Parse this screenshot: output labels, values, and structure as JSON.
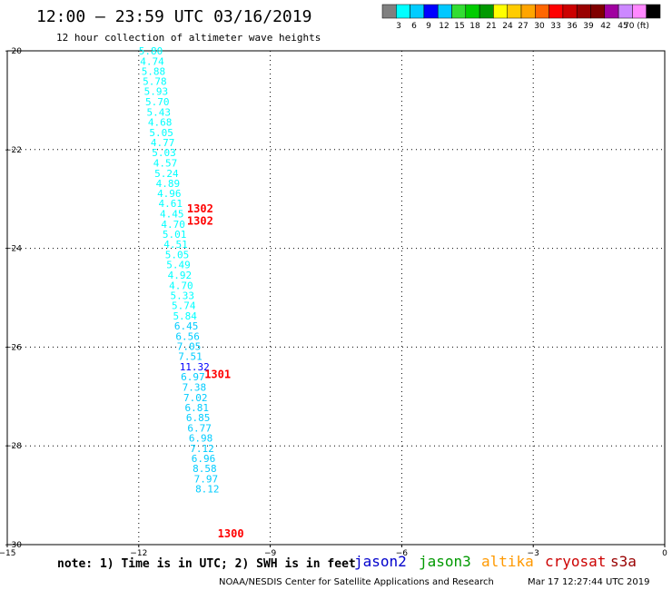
{
  "header": {
    "title": "12:00 — 23:59 UTC 03/16/2019",
    "subtitle": "12 hour collection of altimeter wave heights"
  },
  "color_scale": {
    "colors": [
      "#808080",
      "#00ffff",
      "#00ccff",
      "#0000ff",
      "#00c8ff",
      "#33dd33",
      "#00cc00",
      "#009900",
      "#ffff00",
      "#ffcc00",
      "#ffa500",
      "#ff6600",
      "#ff0000",
      "#cc0000",
      "#990000",
      "#800000",
      "#a000a0",
      "#cc88ff",
      "#ff88ff",
      "#000000"
    ],
    "labels": [
      "3",
      "6",
      "9",
      "12",
      "15",
      "18",
      "21",
      "24",
      "27",
      "30",
      "33",
      "36",
      "39",
      "42",
      "45",
      "70 (ft)"
    ]
  },
  "chart_data": {
    "type": "scatter",
    "title": "12:00 — 23:59 UTC 03/16/2019",
    "subtitle": "12 hour collection of altimeter wave heights",
    "xlim": [
      -15,
      0
    ],
    "ylim": [
      -30,
      -20
    ],
    "xticks": [
      -15,
      -12,
      -9,
      -6,
      -3,
      0
    ],
    "yticks": [
      -20,
      -22,
      -24,
      -26,
      -28,
      -30
    ],
    "xtick_labels": [
      "−15",
      "−12",
      "−9",
      "−6",
      "−3",
      "0"
    ],
    "ytick_labels": [
      "−20",
      "−22",
      "−24",
      "−26",
      "−28",
      "−30"
    ],
    "grid": "dotted",
    "points": [
      {
        "lon": -12.0,
        "lat": -20.0,
        "label": "5.80",
        "color": "#00ffff"
      },
      {
        "lon": -11.97,
        "lat": -20.21,
        "label": "4.74",
        "color": "#00ffff"
      },
      {
        "lon": -11.94,
        "lat": -20.41,
        "label": "5.88",
        "color": "#00ffff"
      },
      {
        "lon": -11.91,
        "lat": -20.62,
        "label": "5.78",
        "color": "#00ffff"
      },
      {
        "lon": -11.88,
        "lat": -20.82,
        "label": "5.93",
        "color": "#00ffff"
      },
      {
        "lon": -11.85,
        "lat": -21.03,
        "label": "5.70",
        "color": "#00ffff"
      },
      {
        "lon": -11.82,
        "lat": -21.24,
        "label": "5.43",
        "color": "#00ffff"
      },
      {
        "lon": -11.79,
        "lat": -21.44,
        "label": "4.68",
        "color": "#00ffff"
      },
      {
        "lon": -11.76,
        "lat": -21.65,
        "label": "5.05",
        "color": "#00ffff"
      },
      {
        "lon": -11.73,
        "lat": -21.86,
        "label": "4.77",
        "color": "#00ffff"
      },
      {
        "lon": -11.7,
        "lat": -22.06,
        "label": "5.03",
        "color": "#00ffff"
      },
      {
        "lon": -11.67,
        "lat": -22.27,
        "label": "4.57",
        "color": "#00ffff"
      },
      {
        "lon": -11.64,
        "lat": -22.48,
        "label": "5.24",
        "color": "#00ffff"
      },
      {
        "lon": -11.61,
        "lat": -22.68,
        "label": "4.89",
        "color": "#00ffff"
      },
      {
        "lon": -11.58,
        "lat": -22.89,
        "label": "4.96",
        "color": "#00ffff"
      },
      {
        "lon": -11.55,
        "lat": -23.09,
        "label": "4.61",
        "color": "#00ffff"
      },
      {
        "lon": -11.52,
        "lat": -23.3,
        "label": "4.45",
        "color": "#00ffff"
      },
      {
        "lon": -11.49,
        "lat": -23.51,
        "label": "4.70",
        "color": "#00ffff"
      },
      {
        "lon": -11.46,
        "lat": -23.71,
        "label": "5.01",
        "color": "#00ffff"
      },
      {
        "lon": -11.43,
        "lat": -23.92,
        "label": "4.51",
        "color": "#00ffff"
      },
      {
        "lon": -11.4,
        "lat": -24.13,
        "label": "5.05",
        "color": "#00ffff"
      },
      {
        "lon": -11.37,
        "lat": -24.33,
        "label": "5.49",
        "color": "#00ffff"
      },
      {
        "lon": -11.34,
        "lat": -24.54,
        "label": "4.92",
        "color": "#00ffff"
      },
      {
        "lon": -11.31,
        "lat": -24.75,
        "label": "4.70",
        "color": "#00ffff"
      },
      {
        "lon": -11.28,
        "lat": -24.95,
        "label": "5.33",
        "color": "#00ffff"
      },
      {
        "lon": -11.25,
        "lat": -25.16,
        "label": "5.74",
        "color": "#00ffff"
      },
      {
        "lon": -11.22,
        "lat": -25.37,
        "label": "5.84",
        "color": "#00ffff"
      },
      {
        "lon": -11.19,
        "lat": -25.57,
        "label": "6.45",
        "color": "#00ccff"
      },
      {
        "lon": -11.16,
        "lat": -25.78,
        "label": "6.56",
        "color": "#00ccff"
      },
      {
        "lon": -11.13,
        "lat": -25.98,
        "label": "7.05",
        "color": "#00ccff"
      },
      {
        "lon": -11.1,
        "lat": -26.19,
        "label": "7.51",
        "color": "#00ccff"
      },
      {
        "lon": -11.07,
        "lat": -26.4,
        "label": "11.32",
        "color": "#0000ff"
      },
      {
        "lon": -11.04,
        "lat": -26.6,
        "label": "6.97",
        "color": "#00ccff"
      },
      {
        "lon": -11.01,
        "lat": -26.81,
        "label": "7.38",
        "color": "#00ccff"
      },
      {
        "lon": -10.98,
        "lat": -27.02,
        "label": "7.02",
        "color": "#00ccff"
      },
      {
        "lon": -10.95,
        "lat": -27.22,
        "label": "6.81",
        "color": "#00ccff"
      },
      {
        "lon": -10.92,
        "lat": -27.43,
        "label": "6.85",
        "color": "#00ccff"
      },
      {
        "lon": -10.89,
        "lat": -27.64,
        "label": "6.77",
        "color": "#00ccff"
      },
      {
        "lon": -10.86,
        "lat": -27.84,
        "label": "6.98",
        "color": "#00ccff"
      },
      {
        "lon": -10.83,
        "lat": -28.05,
        "label": "7.12",
        "color": "#00ccff"
      },
      {
        "lon": -10.8,
        "lat": -28.25,
        "label": "6.96",
        "color": "#00ccff"
      },
      {
        "lon": -10.77,
        "lat": -28.46,
        "label": "8.58",
        "color": "#00ccff"
      },
      {
        "lon": -10.74,
        "lat": -28.67,
        "label": "7.97",
        "color": "#00ccff"
      },
      {
        "lon": -10.71,
        "lat": -28.87,
        "label": "8.12",
        "color": "#00ccff"
      }
    ],
    "pass_labels": [
      {
        "lon": -10.9,
        "lat": -23.2,
        "label": "1302",
        "color": "#ff0000"
      },
      {
        "lon": -10.9,
        "lat": -23.45,
        "label": "1302",
        "color": "#ff0000"
      },
      {
        "lon": -10.5,
        "lat": -26.55,
        "label": "1301",
        "color": "#ff0000"
      },
      {
        "lon": -10.2,
        "lat": -29.78,
        "label": "1300",
        "color": "#ff0000"
      }
    ]
  },
  "footer": {
    "note": "note: 1) Time is in UTC; 2) SWH is in feet",
    "satellites": [
      {
        "name": "jason2",
        "color": "#0000cc"
      },
      {
        "name": "jason3",
        "color": "#009900"
      },
      {
        "name": "altika",
        "color": "#ff9900"
      },
      {
        "name": "cryosat",
        "color": "#cc0000"
      },
      {
        "name": "s3a",
        "color": "#990000"
      }
    ],
    "credit": "NOAA/NESDIS Center for Satellite Applications and Research",
    "timestamp": "Mar 17 12:27:44 UTC 2019"
  }
}
